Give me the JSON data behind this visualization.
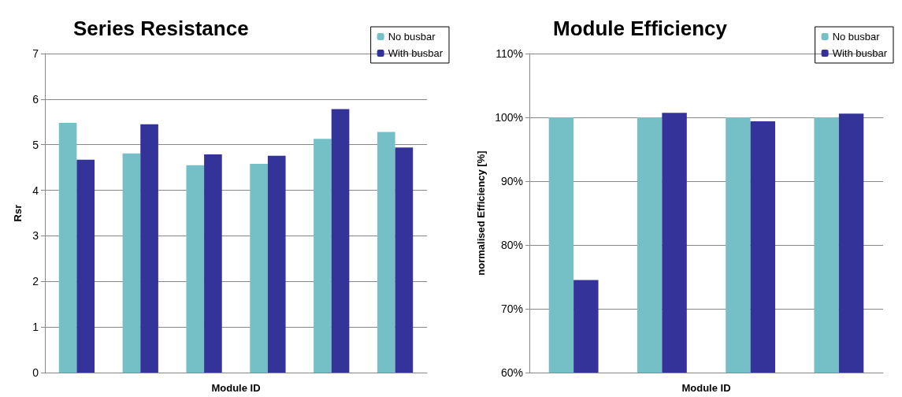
{
  "chart_data": [
    {
      "type": "bar",
      "title": "Series Resistance",
      "xlabel": "Module ID",
      "ylabel": "Rsr",
      "categories": [
        null,
        null,
        null,
        null,
        null,
        null
      ],
      "series": [
        {
          "name": "No busbar",
          "color": "#75c0c6",
          "values": [
            5.48,
            4.81,
            4.55,
            4.58,
            5.13,
            5.28
          ]
        },
        {
          "name": "With busbar",
          "color": "#333399",
          "values": [
            4.67,
            5.45,
            4.79,
            4.76,
            5.78,
            4.94
          ]
        }
      ],
      "ylim": [
        0,
        7
      ],
      "yticks": [
        0,
        1,
        2,
        3,
        4,
        5,
        6,
        7
      ],
      "grid": "y",
      "legend": "top right"
    },
    {
      "type": "bar",
      "title": "Module Efficiency",
      "xlabel": "Module ID",
      "ylabel": "normalised Efficiency [%]",
      "categories": [
        null,
        null,
        null,
        null
      ],
      "series": [
        {
          "name": "No busbar",
          "color": "#75c0c6",
          "values": [
            100,
            100,
            100,
            100
          ]
        },
        {
          "name": "With busbar",
          "color": "#333399",
          "values": [
            74.5,
            100.7,
            99.4,
            100.6
          ]
        }
      ],
      "ylim": [
        60,
        110
      ],
      "yticks": [
        {
          "value": 60,
          "label": "60%"
        },
        {
          "value": 70,
          "label": "70%"
        },
        {
          "value": 80,
          "label": "80%"
        },
        {
          "value": 90,
          "label": "90%"
        },
        {
          "value": 100,
          "label": "100%"
        },
        {
          "value": 110,
          "label": "110%"
        }
      ],
      "grid": "y",
      "legend": "top right"
    }
  ]
}
